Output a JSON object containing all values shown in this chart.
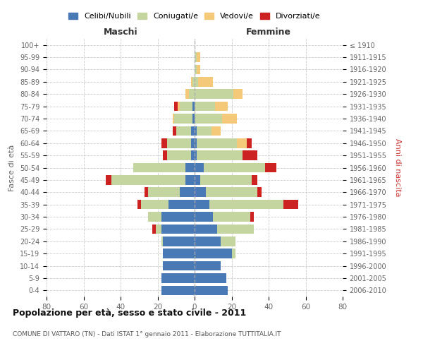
{
  "age_groups": [
    "100+",
    "95-99",
    "90-94",
    "85-89",
    "80-84",
    "75-79",
    "70-74",
    "65-69",
    "60-64",
    "55-59",
    "50-54",
    "45-49",
    "40-44",
    "35-39",
    "30-34",
    "25-29",
    "20-24",
    "15-19",
    "10-14",
    "5-9",
    "0-4"
  ],
  "birth_years": [
    "≤ 1910",
    "1911-1915",
    "1916-1920",
    "1921-1925",
    "1926-1930",
    "1931-1935",
    "1936-1940",
    "1941-1945",
    "1946-1950",
    "1951-1955",
    "1956-1960",
    "1961-1965",
    "1966-1970",
    "1971-1975",
    "1976-1980",
    "1981-1985",
    "1986-1990",
    "1991-1995",
    "1996-2000",
    "2001-2005",
    "2006-2010"
  ],
  "colors": {
    "celibi": "#4a7ab5",
    "coniugati": "#c5d5a0",
    "vedovi": "#f5c97a",
    "divorziati": "#cc2222"
  },
  "maschi": {
    "celibi": [
      0,
      0,
      0,
      0,
      0,
      1,
      1,
      2,
      2,
      2,
      5,
      5,
      8,
      14,
      18,
      18,
      17,
      17,
      17,
      18,
      18
    ],
    "coniugati": [
      0,
      0,
      0,
      1,
      3,
      7,
      10,
      8,
      13,
      13,
      28,
      40,
      17,
      15,
      7,
      3,
      1,
      0,
      0,
      0,
      0
    ],
    "vedovi": [
      0,
      0,
      0,
      1,
      2,
      1,
      1,
      0,
      0,
      0,
      0,
      0,
      0,
      0,
      0,
      0,
      0,
      0,
      0,
      0,
      0
    ],
    "divorziati": [
      0,
      0,
      0,
      0,
      0,
      2,
      0,
      2,
      3,
      2,
      0,
      3,
      2,
      2,
      0,
      2,
      0,
      0,
      0,
      0,
      0
    ]
  },
  "femmine": {
    "celibi": [
      0,
      0,
      0,
      0,
      0,
      0,
      0,
      1,
      1,
      1,
      5,
      3,
      6,
      8,
      10,
      12,
      14,
      20,
      14,
      17,
      18
    ],
    "coniugati": [
      0,
      1,
      1,
      2,
      21,
      11,
      15,
      8,
      22,
      25,
      33,
      28,
      28,
      40,
      20,
      20,
      8,
      2,
      0,
      0,
      0
    ],
    "vedovi": [
      0,
      2,
      2,
      8,
      5,
      7,
      8,
      5,
      5,
      0,
      0,
      0,
      0,
      0,
      0,
      0,
      0,
      0,
      0,
      0,
      0
    ],
    "divorziati": [
      0,
      0,
      0,
      0,
      0,
      0,
      0,
      0,
      3,
      8,
      6,
      3,
      2,
      8,
      2,
      0,
      0,
      0,
      0,
      0,
      0
    ]
  },
  "xlim": 80,
  "title": "Popolazione per età, sesso e stato civile - 2011",
  "subtitle": "COMUNE DI VATTARO (TN) - Dati ISTAT 1° gennaio 2011 - Elaborazione TUTTITALIA.IT",
  "xlabel_left": "Maschi",
  "xlabel_right": "Femmine",
  "ylabel_left": "Fasce di età",
  "ylabel_right": "Anni di nascita",
  "legend_labels": [
    "Celibi/Nubili",
    "Coniugati/e",
    "Vedovi/e",
    "Divorziati/e"
  ],
  "bg_color": "#ffffff",
  "grid_color": "#cccccc",
  "tick_color": "#666666",
  "right_label_color": "#cc3333"
}
